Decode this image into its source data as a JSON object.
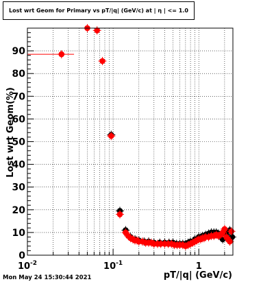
{
  "title": "Lost wrt Geom for Primary vs pT/|q| (GeV/c) at | η | <= 1.0",
  "footer": "Mon May 24 15:30:44 2021",
  "colors": {
    "primary": "#ff0000",
    "secondary": "#000000",
    "grid": "#000000"
  },
  "chart_data": {
    "type": "scatter",
    "title": "Lost wrt Geom for Primary vs pT/|q| (GeV/c) at | η | <= 1.0",
    "xlabel": "pT/|q| (GeV/c)",
    "ylabel": "Lost wrt Geom(%)",
    "xscale": "log",
    "xlim": [
      0.01,
      2.5
    ],
    "ylim": [
      0,
      100
    ],
    "x_tick_labels": [
      "10^-2",
      "10^-1",
      "1"
    ],
    "y_tick_labels": [
      "0",
      "10",
      "20",
      "30",
      "40",
      "50",
      "60",
      "70",
      "80",
      "90"
    ],
    "grid": true,
    "series": [
      {
        "color": "#000000",
        "points": [
          {
            "x": 0.095,
            "y": 53
          },
          {
            "x": 0.12,
            "y": 19.5
          },
          {
            "x": 0.14,
            "y": 11
          },
          {
            "x": 0.16,
            "y": 8
          },
          {
            "x": 0.18,
            "y": 7
          },
          {
            "x": 0.2,
            "y": 6.5
          },
          {
            "x": 0.23,
            "y": 6
          },
          {
            "x": 0.26,
            "y": 6
          },
          {
            "x": 0.3,
            "y": 5.5
          },
          {
            "x": 0.35,
            "y": 5.5
          },
          {
            "x": 0.4,
            "y": 5.5
          },
          {
            "x": 0.45,
            "y": 5.5
          },
          {
            "x": 0.5,
            "y": 5.5
          },
          {
            "x": 0.55,
            "y": 5
          },
          {
            "x": 0.6,
            "y": 5
          },
          {
            "x": 0.65,
            "y": 5
          },
          {
            "x": 0.7,
            "y": 5
          },
          {
            "x": 0.75,
            "y": 5.5
          },
          {
            "x": 0.8,
            "y": 6
          },
          {
            "x": 0.9,
            "y": 7
          },
          {
            "x": 1.0,
            "y": 8
          },
          {
            "x": 1.1,
            "y": 8.5
          },
          {
            "x": 1.2,
            "y": 9
          },
          {
            "x": 1.3,
            "y": 9.5
          },
          {
            "x": 1.4,
            "y": 10
          },
          {
            "x": 1.5,
            "y": 10
          },
          {
            "x": 1.6,
            "y": 10
          },
          {
            "x": 1.7,
            "y": 9.5
          },
          {
            "x": 1.8,
            "y": 9
          },
          {
            "x": 1.9,
            "y": 7
          },
          {
            "x": 2.0,
            "y": 10.5
          },
          {
            "x": 2.1,
            "y": 9
          },
          {
            "x": 2.2,
            "y": 7.5
          },
          {
            "x": 2.3,
            "y": 11
          },
          {
            "x": 2.45,
            "y": 8
          }
        ]
      },
      {
        "color": "#ff0000",
        "points": [
          {
            "x": 0.025,
            "y": 88.5
          },
          {
            "x": 0.05,
            "y": 100
          },
          {
            "x": 0.065,
            "y": 99
          },
          {
            "x": 0.075,
            "y": 85.5
          },
          {
            "x": 0.095,
            "y": 52.5
          },
          {
            "x": 0.12,
            "y": 18
          },
          {
            "x": 0.14,
            "y": 10
          },
          {
            "x": 0.15,
            "y": 8.5
          },
          {
            "x": 0.16,
            "y": 7.5
          },
          {
            "x": 0.17,
            "y": 7
          },
          {
            "x": 0.18,
            "y": 6.5
          },
          {
            "x": 0.19,
            "y": 6.5
          },
          {
            "x": 0.2,
            "y": 6
          },
          {
            "x": 0.22,
            "y": 6
          },
          {
            "x": 0.24,
            "y": 5.5
          },
          {
            "x": 0.26,
            "y": 5.5
          },
          {
            "x": 0.28,
            "y": 5.5
          },
          {
            "x": 0.3,
            "y": 5
          },
          {
            "x": 0.33,
            "y": 5
          },
          {
            "x": 0.36,
            "y": 5
          },
          {
            "x": 0.4,
            "y": 5
          },
          {
            "x": 0.44,
            "y": 5
          },
          {
            "x": 0.48,
            "y": 5
          },
          {
            "x": 0.52,
            "y": 4.5
          },
          {
            "x": 0.56,
            "y": 4.5
          },
          {
            "x": 0.6,
            "y": 4.5
          },
          {
            "x": 0.65,
            "y": 4.5
          },
          {
            "x": 0.7,
            "y": 4
          },
          {
            "x": 0.75,
            "y": 4.5
          },
          {
            "x": 0.8,
            "y": 5
          },
          {
            "x": 0.85,
            "y": 5.5
          },
          {
            "x": 0.9,
            "y": 6
          },
          {
            "x": 0.95,
            "y": 6.5
          },
          {
            "x": 1.0,
            "y": 7
          },
          {
            "x": 1.05,
            "y": 7
          },
          {
            "x": 1.1,
            "y": 7.5
          },
          {
            "x": 1.15,
            "y": 7.5
          },
          {
            "x": 1.2,
            "y": 8
          },
          {
            "x": 1.3,
            "y": 8
          },
          {
            "x": 1.4,
            "y": 8.5
          },
          {
            "x": 1.5,
            "y": 8.5
          },
          {
            "x": 1.6,
            "y": 9
          },
          {
            "x": 1.7,
            "y": 8.5
          },
          {
            "x": 1.8,
            "y": 9
          },
          {
            "x": 1.9,
            "y": 10
          },
          {
            "x": 2.0,
            "y": 11.5
          },
          {
            "x": 2.1,
            "y": 8
          },
          {
            "x": 2.2,
            "y": 7
          },
          {
            "x": 2.3,
            "y": 6
          },
          {
            "x": 2.4,
            "y": 10.5
          }
        ]
      }
    ]
  }
}
